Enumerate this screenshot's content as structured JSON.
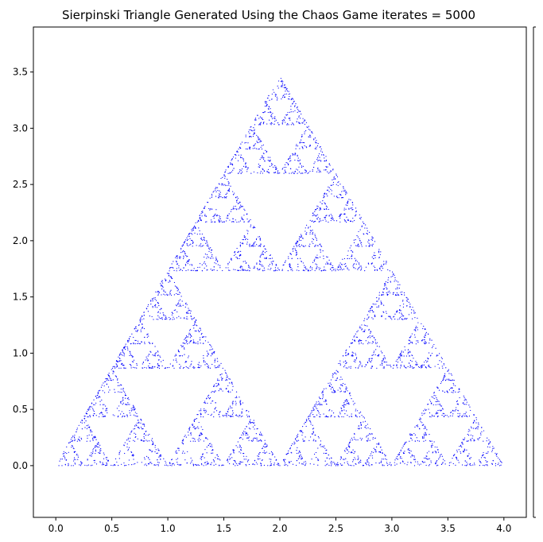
{
  "chart_data": {
    "type": "scatter",
    "title": "Sierpinski Triangle Generated Using the Chaos Game iterates = 5000",
    "xlabel": "",
    "ylabel": "",
    "xlim": [
      -0.2,
      4.2
    ],
    "ylim": [
      -0.46,
      3.9
    ],
    "x_ticks": [
      0.0,
      0.5,
      1.0,
      1.5,
      2.0,
      2.5,
      3.0,
      3.5,
      4.0
    ],
    "x_tick_labels": [
      "0.0",
      "0.5",
      "1.0",
      "1.5",
      "2.0",
      "2.5",
      "3.0",
      "3.5",
      "4.0"
    ],
    "y_ticks": [
      0.0,
      0.5,
      1.0,
      1.5,
      2.0,
      2.5,
      3.0,
      3.5
    ],
    "y_tick_labels": [
      "0.0",
      "0.5",
      "1.0",
      "1.5",
      "2.0",
      "2.5",
      "3.0",
      "3.5"
    ],
    "vertices": [
      [
        0,
        0
      ],
      [
        4,
        0
      ],
      [
        2,
        3.4641
      ]
    ],
    "iterations": 5000,
    "marker_color": "#0000ff",
    "grid": false,
    "legend": "none"
  }
}
